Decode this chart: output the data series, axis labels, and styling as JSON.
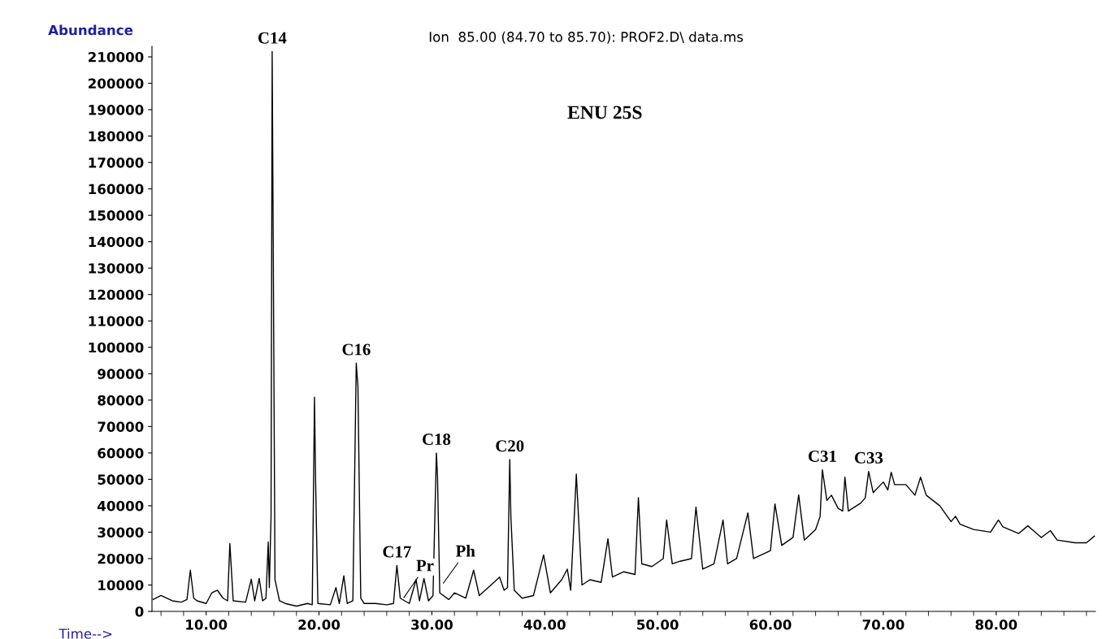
{
  "chart_data": {
    "type": "line",
    "title": "Ion  85.00 (84.70 to 85.70): PROF2.D\\ data.ms",
    "xlabel": "Time-->",
    "ylabel": "Abundance",
    "x": [
      5.3,
      6.0,
      7.0,
      7.8,
      8.3,
      8.6,
      8.9,
      9.2,
      10.0,
      10.5,
      11.0,
      11.5,
      11.9,
      12.1,
      12.4,
      13.5,
      14.0,
      14.3,
      14.7,
      15.0,
      15.3,
      15.5,
      15.6,
      15.75,
      15.85,
      15.95,
      16.1,
      16.5,
      17.0,
      18.0,
      19.0,
      19.4,
      19.6,
      19.7,
      19.9,
      21.0,
      21.5,
      21.8,
      22.2,
      22.5,
      23.0,
      23.3,
      23.45,
      23.7,
      24.0,
      25.0,
      26.0,
      26.6,
      26.9,
      27.2,
      28.0,
      28.6,
      28.9,
      29.3,
      29.7,
      30.1,
      30.4,
      30.5,
      30.7,
      31.5,
      32.0,
      33.0,
      33.7,
      34.2,
      35.5,
      36.0,
      36.4,
      36.7,
      36.9,
      37.0,
      37.3,
      38.0,
      39.0,
      39.9,
      40.5,
      41.5,
      42.0,
      42.3,
      42.8,
      43.3,
      44.0,
      45.0,
      45.6,
      46.0,
      47.0,
      48.0,
      48.3,
      48.6,
      49.5,
      50.5,
      50.8,
      51.3,
      52.0,
      53.0,
      53.4,
      54.0,
      55.0,
      55.8,
      56.2,
      57.0,
      58.0,
      58.5,
      60.0,
      60.4,
      61.0,
      62.0,
      62.5,
      63.0,
      64.0,
      64.4,
      64.6,
      65.0,
      65.4,
      66.0,
      66.4,
      66.6,
      66.9,
      68.0,
      68.4,
      68.7,
      69.1,
      70.0,
      70.4,
      70.7,
      71.0,
      72.0,
      72.8,
      73.3,
      73.8,
      75.0,
      76.0,
      76.4,
      76.8,
      78.0,
      79.5,
      80.2,
      80.6,
      82.0,
      82.8,
      84.0,
      84.8,
      85.4,
      87.0,
      88.0,
      88.7
    ],
    "values": [
      4500,
      6000,
      4000,
      3500,
      4500,
      15600,
      5000,
      4000,
      3000,
      7000,
      8000,
      5000,
      4000,
      25700,
      4000,
      3500,
      12200,
      4000,
      12500,
      4000,
      5000,
      26300,
      9000,
      36000,
      212000,
      135000,
      12000,
      4000,
      3000,
      2000,
      3000,
      2500,
      81100,
      49000,
      3000,
      2500,
      9000,
      3000,
      13500,
      3000,
      4000,
      94000,
      85000,
      5000,
      3000,
      3000,
      2500,
      3000,
      17400,
      5000,
      3000,
      12000,
      4000,
      12500,
      4000,
      6000,
      60000,
      51000,
      7000,
      4500,
      7000,
      5000,
      15600,
      6000,
      11000,
      13000,
      8000,
      9000,
      57500,
      36000,
      8000,
      5000,
      6000,
      21400,
      7000,
      12000,
      16000,
      8000,
      52000,
      10000,
      12000,
      11000,
      27500,
      13000,
      15000,
      14000,
      43100,
      18000,
      17000,
      20000,
      34600,
      18000,
      19000,
      20000,
      39500,
      16000,
      18000,
      34600,
      18000,
      20000,
      37300,
      20000,
      23000,
      40700,
      25000,
      28000,
      44100,
      27000,
      31000,
      36000,
      53600,
      42000,
      44000,
      39000,
      38000,
      50800,
      38000,
      41000,
      43000,
      53000,
      45000,
      49000,
      46000,
      52700,
      48000,
      48000,
      44000,
      50800,
      44000,
      40000,
      34000,
      36000,
      33000,
      31000,
      30000,
      34600,
      32000,
      29500,
      32400,
      28000,
      30600,
      27000,
      26000,
      26000,
      28500
    ],
    "color": "#000000",
    "xlim": [
      5.2,
      88.8
    ],
    "ylim": [
      0,
      214000
    ],
    "xticks": [
      {
        "value": 10,
        "label": "10.00"
      },
      {
        "value": 20,
        "label": "20.00"
      },
      {
        "value": 30,
        "label": "30.00"
      },
      {
        "value": 40,
        "label": "40.00"
      },
      {
        "value": 50,
        "label": "50.00"
      },
      {
        "value": 60,
        "label": "60.00"
      },
      {
        "value": 70,
        "label": "70.00"
      },
      {
        "value": 80,
        "label": "80.00"
      }
    ],
    "yticks": [
      0,
      10000,
      20000,
      30000,
      40000,
      50000,
      60000,
      70000,
      80000,
      90000,
      100000,
      110000,
      120000,
      130000,
      140000,
      150000,
      160000,
      170000,
      180000,
      190000,
      200000,
      210000
    ],
    "grid": false,
    "legend": false,
    "annotations": [
      {
        "text": "C14",
        "x": 15.85,
        "y": 212000
      },
      {
        "text": "C16",
        "x": 23.3,
        "y": 94000
      },
      {
        "text": "C17",
        "x": 26.9,
        "y": 17400
      },
      {
        "text": "Pr",
        "x": 27.4,
        "y": 4500
      },
      {
        "text": "C18",
        "x": 30.4,
        "y": 60000
      },
      {
        "text": "Ph",
        "x": 30.9,
        "y": 10000
      },
      {
        "text": "C20",
        "x": 36.9,
        "y": 57500
      },
      {
        "text": "C31",
        "x": 64.6,
        "y": 53600
      },
      {
        "text": "C33",
        "x": 68.7,
        "y": 53000
      },
      "ENU 25S"
    ]
  }
}
